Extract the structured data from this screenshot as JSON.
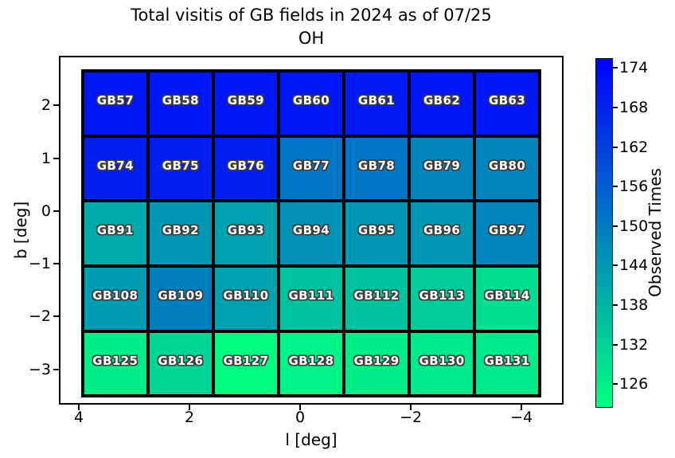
{
  "chart_data": {
    "type": "heatmap",
    "title": "Total visitis of GB fields in 2024 as of 07/25",
    "subtitle": "OH",
    "xlabel": "l [deg]",
    "ylabel": "b [deg]",
    "colorbar_label": "Observed Times",
    "colormap": "winter_r",
    "color_low": "#00ff80",
    "color_high": "#0000ff",
    "vmin": 122.4,
    "vmax": 175.5,
    "xlim": [
      4.36,
      -4.76
    ],
    "ylim": [
      -3.67,
      2.94
    ],
    "mesh_x_extent": [
      3.96,
      -4.36
    ],
    "mesh_y_extent": [
      2.68,
      -3.54
    ],
    "x_ticks": [
      4,
      2,
      0,
      -2,
      -4
    ],
    "y_ticks": [
      2,
      1,
      0,
      -1,
      -2,
      -3
    ],
    "colorbar_ticks": [
      174,
      168,
      162,
      156,
      150,
      144,
      138,
      132,
      126
    ],
    "grid_on": false,
    "legend": "none",
    "rows": [
      {
        "labels": [
          "GB57",
          "GB58",
          "GB59",
          "GB60",
          "GB61",
          "GB62",
          "GB63"
        ],
        "values": [
          171,
          171,
          171,
          171,
          170,
          171,
          171
        ]
      },
      {
        "labels": [
          "GB74",
          "GB75",
          "GB76",
          "GB77",
          "GB78",
          "GB79",
          "GB80"
        ],
        "values": [
          169,
          169,
          169,
          151,
          151,
          148,
          148
        ]
      },
      {
        "labels": [
          "GB91",
          "GB92",
          "GB93",
          "GB94",
          "GB95",
          "GB96",
          "GB97"
        ],
        "values": [
          140,
          144,
          142,
          145,
          144,
          144,
          148
        ]
      },
      {
        "labels": [
          "GB108",
          "GB109",
          "GB110",
          "GB111",
          "GB112",
          "GB113",
          "GB114"
        ],
        "values": [
          143,
          149,
          142,
          135,
          135,
          133,
          129
        ]
      },
      {
        "labels": [
          "GB125",
          "GB126",
          "GB127",
          "GB128",
          "GB129",
          "GB130",
          "GB131"
        ],
        "values": [
          126,
          131,
          123,
          125,
          126,
          127,
          127
        ]
      }
    ]
  }
}
